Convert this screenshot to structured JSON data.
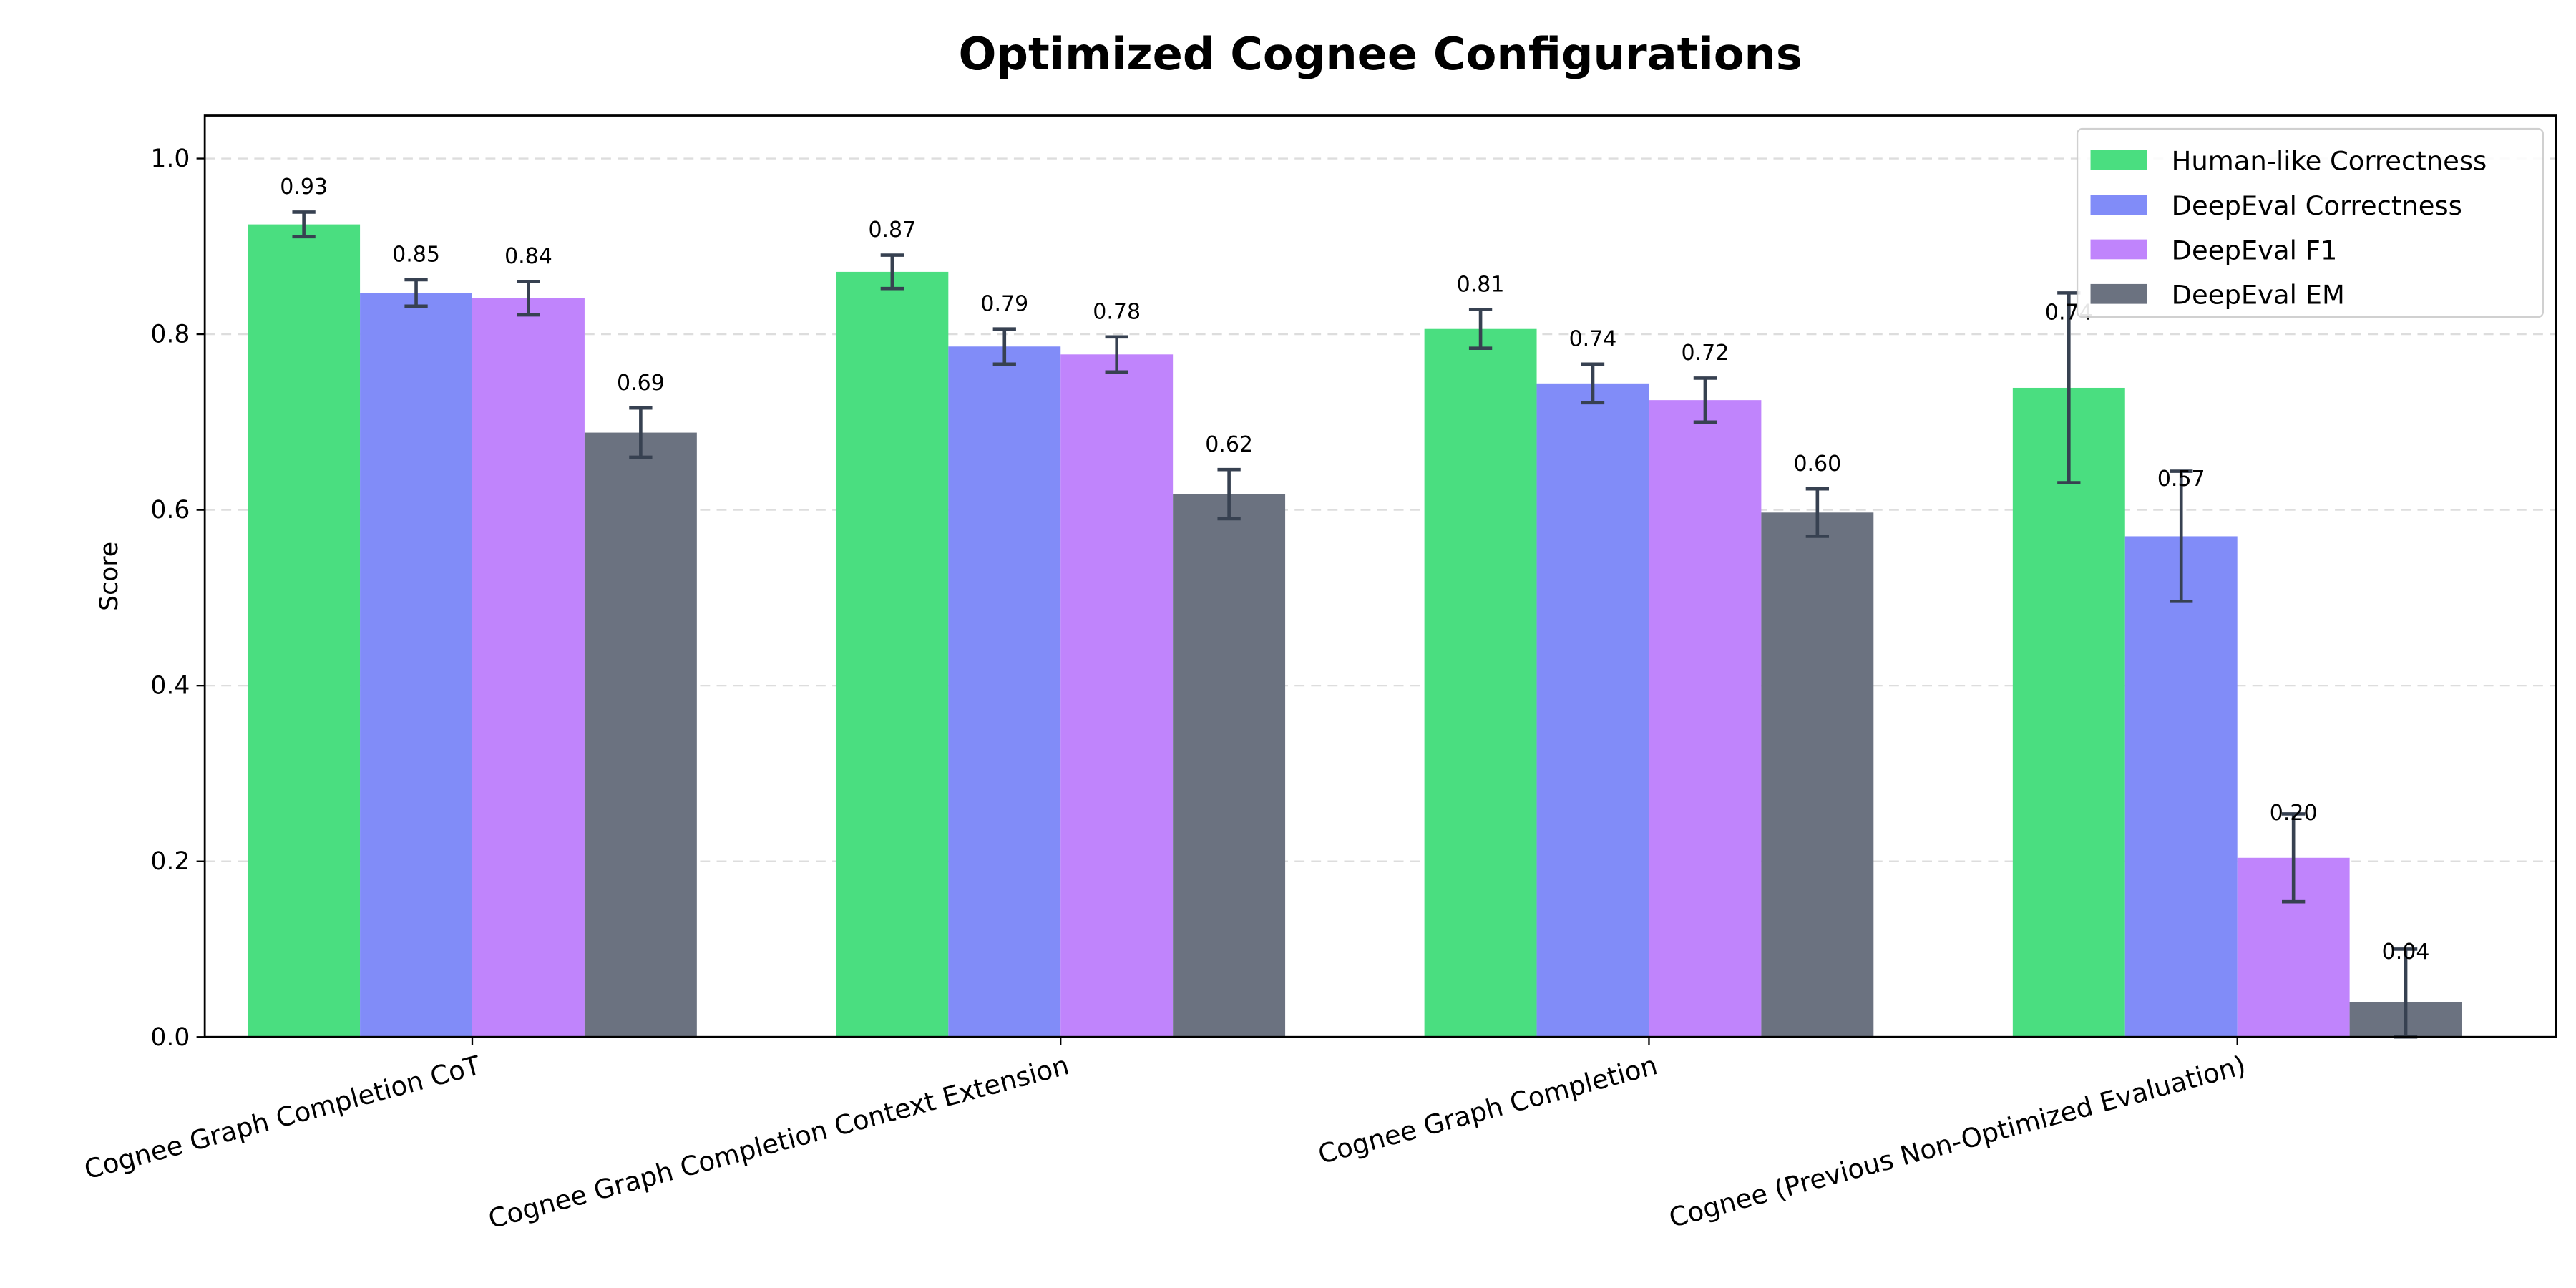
{
  "chart_data": {
    "type": "bar",
    "title": "Optimized Cognee Configurations",
    "xlabel": "",
    "ylabel": "Score",
    "ylim": [
      0,
      1.05
    ],
    "yticks": [
      "0.0",
      "0.2",
      "0.4",
      "0.6",
      "0.8",
      "1.0"
    ],
    "grid": "y-dashed",
    "legend_position": "top-right",
    "categories": [
      "Cognee Graph Completion CoT",
      "Cognee Graph Completion Context Extension",
      "Cognee Graph Completion",
      "Cognee (Previous Non-Optimized Evaluation)"
    ],
    "series": [
      {
        "name": "Human-like Correctness",
        "color": "#4ade80",
        "values": [
          0.925,
          0.871,
          0.806,
          0.739
        ],
        "errors": [
          0.014,
          0.019,
          0.022,
          0.108
        ],
        "labels": [
          "0.93",
          "0.87",
          "0.81",
          "0.74"
        ]
      },
      {
        "name": "DeepEval Correctness",
        "color": "#818cf8",
        "values": [
          0.847,
          0.786,
          0.744,
          0.57
        ],
        "errors": [
          0.015,
          0.02,
          0.022,
          0.074
        ],
        "labels": [
          "0.85",
          "0.79",
          "0.74",
          "0.57"
        ]
      },
      {
        "name": "DeepEval F1",
        "color": "#c084fc",
        "values": [
          0.841,
          0.777,
          0.725,
          0.204
        ],
        "errors": [
          0.019,
          0.02,
          0.025,
          0.05
        ],
        "labels": [
          "0.84",
          "0.78",
          "0.72",
          "0.20"
        ]
      },
      {
        "name": "DeepEval EM",
        "color": "#6b7280",
        "values": [
          0.688,
          0.618,
          0.597,
          0.04
        ],
        "errors": [
          0.028,
          0.028,
          0.027,
          0.06
        ],
        "labels": [
          "0.69",
          "0.62",
          "0.60",
          "0.04"
        ]
      }
    ],
    "error_bar_color": "#374151"
  }
}
